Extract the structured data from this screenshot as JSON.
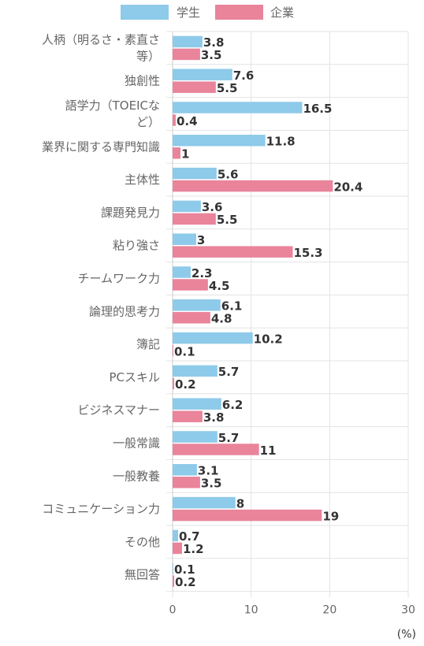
{
  "chart_data": {
    "type": "bar",
    "orientation": "horizontal",
    "categories": [
      [
        "人柄（明るさ・素直さ",
        "等）"
      ],
      [
        "独創性"
      ],
      [
        "語学力（TOEICな",
        "ど）"
      ],
      [
        "業界に関する専門知識"
      ],
      [
        "主体性"
      ],
      [
        "課題発見力"
      ],
      [
        "粘り強さ"
      ],
      [
        "チームワーク力"
      ],
      [
        "論理的思考力"
      ],
      [
        "簿記"
      ],
      [
        "PCスキル"
      ],
      [
        "ビジネスマナー"
      ],
      [
        "一般常識"
      ],
      [
        "一般教養"
      ],
      [
        "コミュニケーション力"
      ],
      [
        "その他"
      ],
      [
        "無回答"
      ]
    ],
    "series": [
      {
        "name": "学生",
        "color": "#8ecae9",
        "values": [
          3.8,
          7.6,
          16.5,
          11.8,
          5.6,
          3.6,
          3,
          2.3,
          6.1,
          10.2,
          5.7,
          6.2,
          5.7,
          3.1,
          8,
          0.7,
          0.1
        ]
      },
      {
        "name": "企業",
        "color": "#e9849b",
        "values": [
          3.5,
          5.5,
          0.4,
          1,
          20.4,
          5.5,
          15.3,
          4.5,
          4.8,
          0.1,
          0.2,
          3.8,
          11,
          3.5,
          19,
          1.2,
          0.2
        ]
      }
    ],
    "xlim": [
      0,
      30
    ],
    "xticks": [
      0,
      10,
      20,
      30
    ],
    "unit_label": "(%)",
    "grid": true,
    "legend_position": "top"
  }
}
